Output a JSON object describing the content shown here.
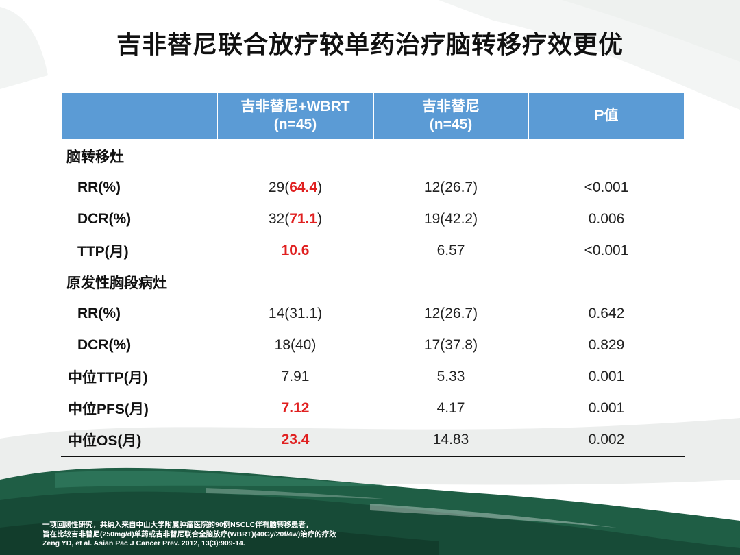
{
  "title": "吉非替尼联合放疗较单药治疗脑转移疗效更优",
  "table": {
    "headers": [
      {
        "line1": "",
        "line2": ""
      },
      {
        "line1": "吉非替尼+WBRT",
        "line2": "(n=45)"
      },
      {
        "line1": "吉非替尼",
        "line2": "(n=45)"
      },
      {
        "line1": "P值",
        "line2": ""
      }
    ],
    "rows": [
      {
        "label": "脑转移灶",
        "type": "section"
      },
      {
        "label": "RR(%)",
        "type": "indent",
        "c1_pre": "29(",
        "c1_red": "64.4",
        "c1_post": ")",
        "c2": "12(26.7)",
        "c3": "<0.001"
      },
      {
        "label": "DCR(%)",
        "type": "indent",
        "c1_pre": "32(",
        "c1_red": "71.1",
        "c1_post": ")",
        "c2": "19(42.2)",
        "c3": "0.006"
      },
      {
        "label": "TTP(月)",
        "type": "indent",
        "c1_pre": "",
        "c1_red": "10.6",
        "c1_post": "",
        "c2": "6.57",
        "c3": "<0.001"
      },
      {
        "label": "原发性胸段病灶",
        "type": "section"
      },
      {
        "label": "RR(%)",
        "type": "indent",
        "c1_pre": "14(31.1)",
        "c1_red": "",
        "c1_post": "",
        "c2": "12(26.7)",
        "c3": "0.642"
      },
      {
        "label": "DCR(%)",
        "type": "indent",
        "c1_pre": "18(40)",
        "c1_red": "",
        "c1_post": "",
        "c2": "17(37.8)",
        "c3": "0.829"
      },
      {
        "label": "中位TTP(月)",
        "type": "plain",
        "c1_pre": "7.91",
        "c1_red": "",
        "c1_post": "",
        "c2": "5.33",
        "c3": "0.001"
      },
      {
        "label": "中位PFS(月)",
        "type": "plain",
        "c1_pre": "",
        "c1_red": "7.12",
        "c1_post": "",
        "c2": "4.17",
        "c3": "0.001"
      },
      {
        "label": "中位OS(月)",
        "type": "plain",
        "c1_pre": "",
        "c1_red": "23.4",
        "c1_post": "",
        "c2": "14.83",
        "c3": "0.002"
      }
    ]
  },
  "footnote": {
    "line1": "一项回顾性研究，共纳入来自中山大学附属肿瘤医院的90例NSCLC伴有脑转移患者，",
    "line2": "旨在比较吉非替尼(250mg/d)单药或吉非替尼联合全脑放疗(WBRT)(40Gy/20f/4w)治疗的疗效",
    "line3": "Zeng YD, et al. Asian Pac J Cancer Prev. 2012, 13(3):909-14."
  },
  "colors": {
    "header_bg": "#5b9bd5",
    "highlight": "#e02020",
    "brush_green": "#1f5e45"
  }
}
